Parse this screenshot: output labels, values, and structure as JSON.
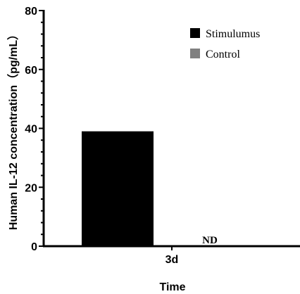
{
  "chart_data": {
    "type": "bar",
    "categories": [
      "3d"
    ],
    "series": [
      {
        "name": "Stimulumus",
        "values": [
          39
        ],
        "color": "#000000"
      },
      {
        "name": "Control",
        "values": [
          0
        ],
        "color": "#808080",
        "value_label": "ND"
      }
    ],
    "xlabel": "Time",
    "ylabel": "Human IL-12 concentration（pg/mL）",
    "ylim": [
      0,
      80
    ],
    "yticks": [
      0,
      20,
      40,
      60,
      80
    ],
    "grid": false,
    "legend_position": "top-right"
  }
}
